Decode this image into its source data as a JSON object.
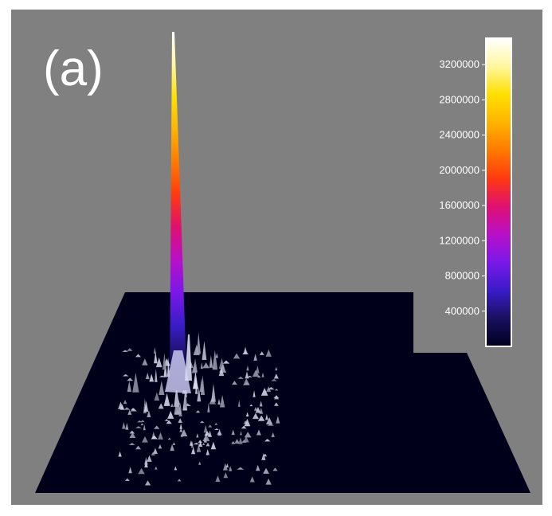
{
  "panel_label": "(a)",
  "colors": {
    "background": "#808080",
    "frame": "#ffffff",
    "surface_base": "#00001a",
    "colormap": [
      "#00001e",
      "#1a1060",
      "#3a1cc8",
      "#7a18e8",
      "#b810c8",
      "#e01070",
      "#ff3a10",
      "#ff7a00",
      "#ffb400",
      "#ffe000",
      "#fff6a0",
      "#ffffff"
    ]
  },
  "chart_data": {
    "type": "surface-3d",
    "title": "",
    "xlabel": "",
    "ylabel": "",
    "zlabel": "",
    "colorbar": {
      "colormap": "gnuplot-like (dark navy → blue → purple → red → orange → yellow → white)",
      "zlim": [
        0,
        3500000
      ],
      "ticks": [
        400000,
        800000,
        1200000,
        1600000,
        2000000,
        2400000,
        2800000,
        3200000
      ],
      "tick_labels": [
        "400000",
        "800000",
        "1200000",
        "1600000",
        "2000000",
        "2400000",
        "2800000",
        "3200000"
      ]
    },
    "peak": {
      "value": 3500000,
      "description": "single sharp central peak"
    },
    "base_level": 0,
    "grid": false,
    "legend": "colorbar right"
  }
}
